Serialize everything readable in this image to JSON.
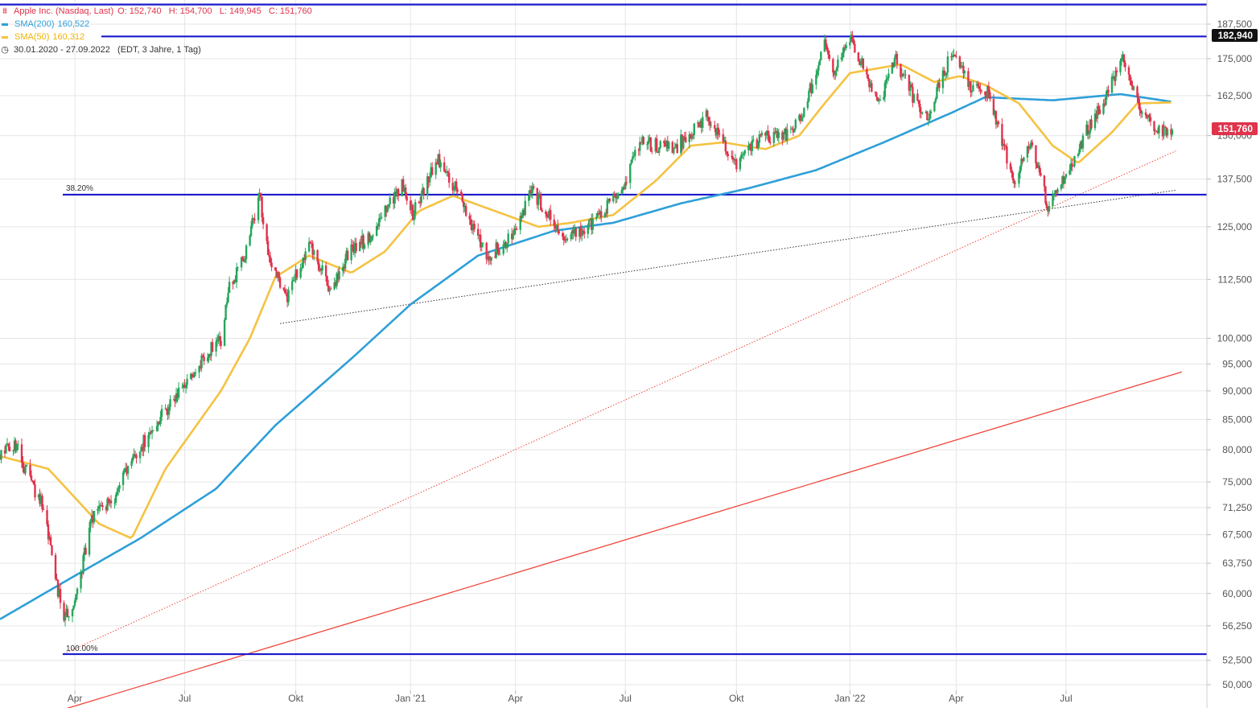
{
  "legend": {
    "instrument": "Apple Inc. (Nasdaq, Last)",
    "ohlc": "O: 152,740   H: 154,700   L: 149,945   C: 151,760",
    "sma200_label": "SMA(200)",
    "sma200_value": "160,522",
    "sma50_label": "SMA(50)",
    "sma50_value": "160,312",
    "range": "30.01.2020 - 27.09.2022   (EDT, 3 Jahre, 1 Tag)"
  },
  "colors": {
    "candle_up": "#26a65b",
    "candle_down": "#e0334c",
    "sma200": "#2e9fd8",
    "sma50": "#f5c242",
    "hline": "#1a1acc",
    "trend_red": "#f0463c",
    "grid": "#e6e6e6"
  },
  "chart_data": {
    "type": "candlestick",
    "y_scale": "log",
    "y_ticks": [
      "187,500",
      "175,000",
      "162,500",
      "150,000",
      "137,500",
      "125,000",
      "112,500",
      "100,000",
      "95,000",
      "90,000",
      "85,000",
      "80,000",
      "75,000",
      "71,250",
      "67,500",
      "63,750",
      "60,000",
      "56,250",
      "52,500",
      "50,000"
    ],
    "x_ticks": [
      "Apr",
      "Jul",
      "Okt",
      "Jan '21",
      "Apr",
      "Jul",
      "Okt",
      "Jan '22",
      "Apr",
      "Jul"
    ],
    "price_labels": {
      "top_line": "182,940",
      "last": "151,760"
    },
    "fib_labels": {
      "f382": "38.20%",
      "f100": "100.00%"
    },
    "hlines": [
      {
        "name": "high",
        "value": 182.94
      },
      {
        "name": "fib-38.2",
        "value": 133.3
      },
      {
        "name": "fib-100",
        "value": 53.15
      },
      {
        "name": "top-border",
        "value": 195.0
      }
    ],
    "trendlines": [
      {
        "name": "red-solid",
        "from": [
          "2020-02-20",
          46.5
        ],
        "to": [
          "2022-10-05",
          93.5
        ],
        "style": "solid"
      },
      {
        "name": "red-dotted",
        "from": [
          "2020-03-23",
          53.2
        ],
        "to": [
          "2022-09-30",
          145.5
        ],
        "style": "dotted"
      },
      {
        "name": "black-dotted",
        "from": [
          "2020-09-18",
          103.0
        ],
        "to": [
          "2022-09-30",
          134.5
        ],
        "style": "dotted"
      }
    ],
    "price_path": [
      [
        "2020-01-30",
        79
      ],
      [
        "2020-02-12",
        81
      ],
      [
        "2020-02-24",
        75
      ],
      [
        "2020-03-05",
        72
      ],
      [
        "2020-03-16",
        62
      ],
      [
        "2020-03-23",
        57
      ],
      [
        "2020-04-03",
        60
      ],
      [
        "2020-04-15",
        70
      ],
      [
        "2020-05-01",
        72
      ],
      [
        "2020-05-20",
        79
      ],
      [
        "2020-06-10",
        85
      ],
      [
        "2020-07-01",
        91
      ],
      [
        "2020-07-20",
        97
      ],
      [
        "2020-07-31",
        100
      ],
      [
        "2020-08-06",
        110
      ],
      [
        "2020-08-20",
        118
      ],
      [
        "2020-09-01",
        134
      ],
      [
        "2020-09-08",
        118
      ],
      [
        "2020-09-23",
        108
      ],
      [
        "2020-10-12",
        121
      ],
      [
        "2020-10-30",
        110
      ],
      [
        "2020-11-16",
        120
      ],
      [
        "2020-12-01",
        122
      ],
      [
        "2020-12-28",
        136
      ],
      [
        "2021-01-06",
        128
      ],
      [
        "2021-01-26",
        143
      ],
      [
        "2021-02-10",
        135
      ],
      [
        "2021-03-08",
        118
      ],
      [
        "2021-03-25",
        121
      ],
      [
        "2021-04-15",
        134
      ],
      [
        "2021-05-12",
        123
      ],
      [
        "2021-06-01",
        125
      ],
      [
        "2021-06-25",
        133
      ],
      [
        "2021-07-14",
        148
      ],
      [
        "2021-08-10",
        146
      ],
      [
        "2021-09-07",
        156
      ],
      [
        "2021-09-30",
        141
      ],
      [
        "2021-10-20",
        149
      ],
      [
        "2021-11-15",
        151
      ],
      [
        "2021-11-26",
        158
      ],
      [
        "2021-12-13",
        180
      ],
      [
        "2021-12-20",
        170
      ],
      [
        "2022-01-03",
        182
      ],
      [
        "2022-01-14",
        172
      ],
      [
        "2022-01-27",
        159
      ],
      [
        "2022-02-09",
        176
      ],
      [
        "2022-02-24",
        162
      ],
      [
        "2022-03-08",
        155
      ],
      [
        "2022-03-29",
        178
      ],
      [
        "2022-04-12",
        166
      ],
      [
        "2022-04-28",
        163
      ],
      [
        "2022-05-11",
        146
      ],
      [
        "2022-05-20",
        137
      ],
      [
        "2022-06-01",
        149
      ],
      [
        "2022-06-16",
        130
      ],
      [
        "2022-07-01",
        139
      ],
      [
        "2022-07-19",
        152
      ],
      [
        "2022-08-01",
        161
      ],
      [
        "2022-08-17",
        174
      ],
      [
        "2022-08-31",
        158
      ],
      [
        "2022-09-13",
        152
      ],
      [
        "2022-09-27",
        151.76
      ]
    ],
    "sma50_path": [
      [
        "2020-01-30",
        79
      ],
      [
        "2020-03-10",
        77
      ],
      [
        "2020-04-21",
        69
      ],
      [
        "2020-05-18",
        67
      ],
      [
        "2020-06-15",
        77
      ],
      [
        "2020-07-31",
        90
      ],
      [
        "2020-08-24",
        100
      ],
      [
        "2020-09-14",
        113
      ],
      [
        "2020-10-12",
        118
      ],
      [
        "2020-11-16",
        114
      ],
      [
        "2020-12-14",
        119
      ],
      [
        "2021-01-11",
        129
      ],
      [
        "2021-02-08",
        133
      ],
      [
        "2021-03-15",
        129
      ],
      [
        "2021-04-20",
        125
      ],
      [
        "2021-05-17",
        126
      ],
      [
        "2021-06-21",
        128
      ],
      [
        "2021-07-26",
        137
      ],
      [
        "2021-08-24",
        147
      ],
      [
        "2021-09-20",
        148
      ],
      [
        "2021-10-25",
        146
      ],
      [
        "2021-11-22",
        150
      ],
      [
        "2021-12-13",
        160
      ],
      [
        "2022-01-03",
        170
      ],
      [
        "2022-02-14",
        173
      ],
      [
        "2022-03-14",
        167
      ],
      [
        "2022-04-04",
        169
      ],
      [
        "2022-04-25",
        166
      ],
      [
        "2022-05-23",
        160
      ],
      [
        "2022-06-20",
        147
      ],
      [
        "2022-07-11",
        142
      ],
      [
        "2022-08-08",
        151
      ],
      [
        "2022-08-29",
        160
      ],
      [
        "2022-09-27",
        160.3
      ]
    ],
    "sma200_path": [
      [
        "2020-01-30",
        57
      ],
      [
        "2020-03-30",
        62
      ],
      [
        "2020-05-25",
        67
      ],
      [
        "2020-07-27",
        74
      ],
      [
        "2020-09-14",
        84
      ],
      [
        "2020-11-16",
        96
      ],
      [
        "2021-01-04",
        107
      ],
      [
        "2021-03-01",
        118
      ],
      [
        "2021-05-03",
        124
      ],
      [
        "2021-06-21",
        126
      ],
      [
        "2021-08-16",
        131
      ],
      [
        "2021-10-11",
        135
      ],
      [
        "2021-12-06",
        140
      ],
      [
        "2022-01-31",
        148
      ],
      [
        "2022-03-28",
        157
      ],
      [
        "2022-04-25",
        162
      ],
      [
        "2022-06-20",
        161
      ],
      [
        "2022-07-18",
        162
      ],
      [
        "2022-08-15",
        163
      ],
      [
        "2022-09-27",
        160.5
      ]
    ]
  }
}
